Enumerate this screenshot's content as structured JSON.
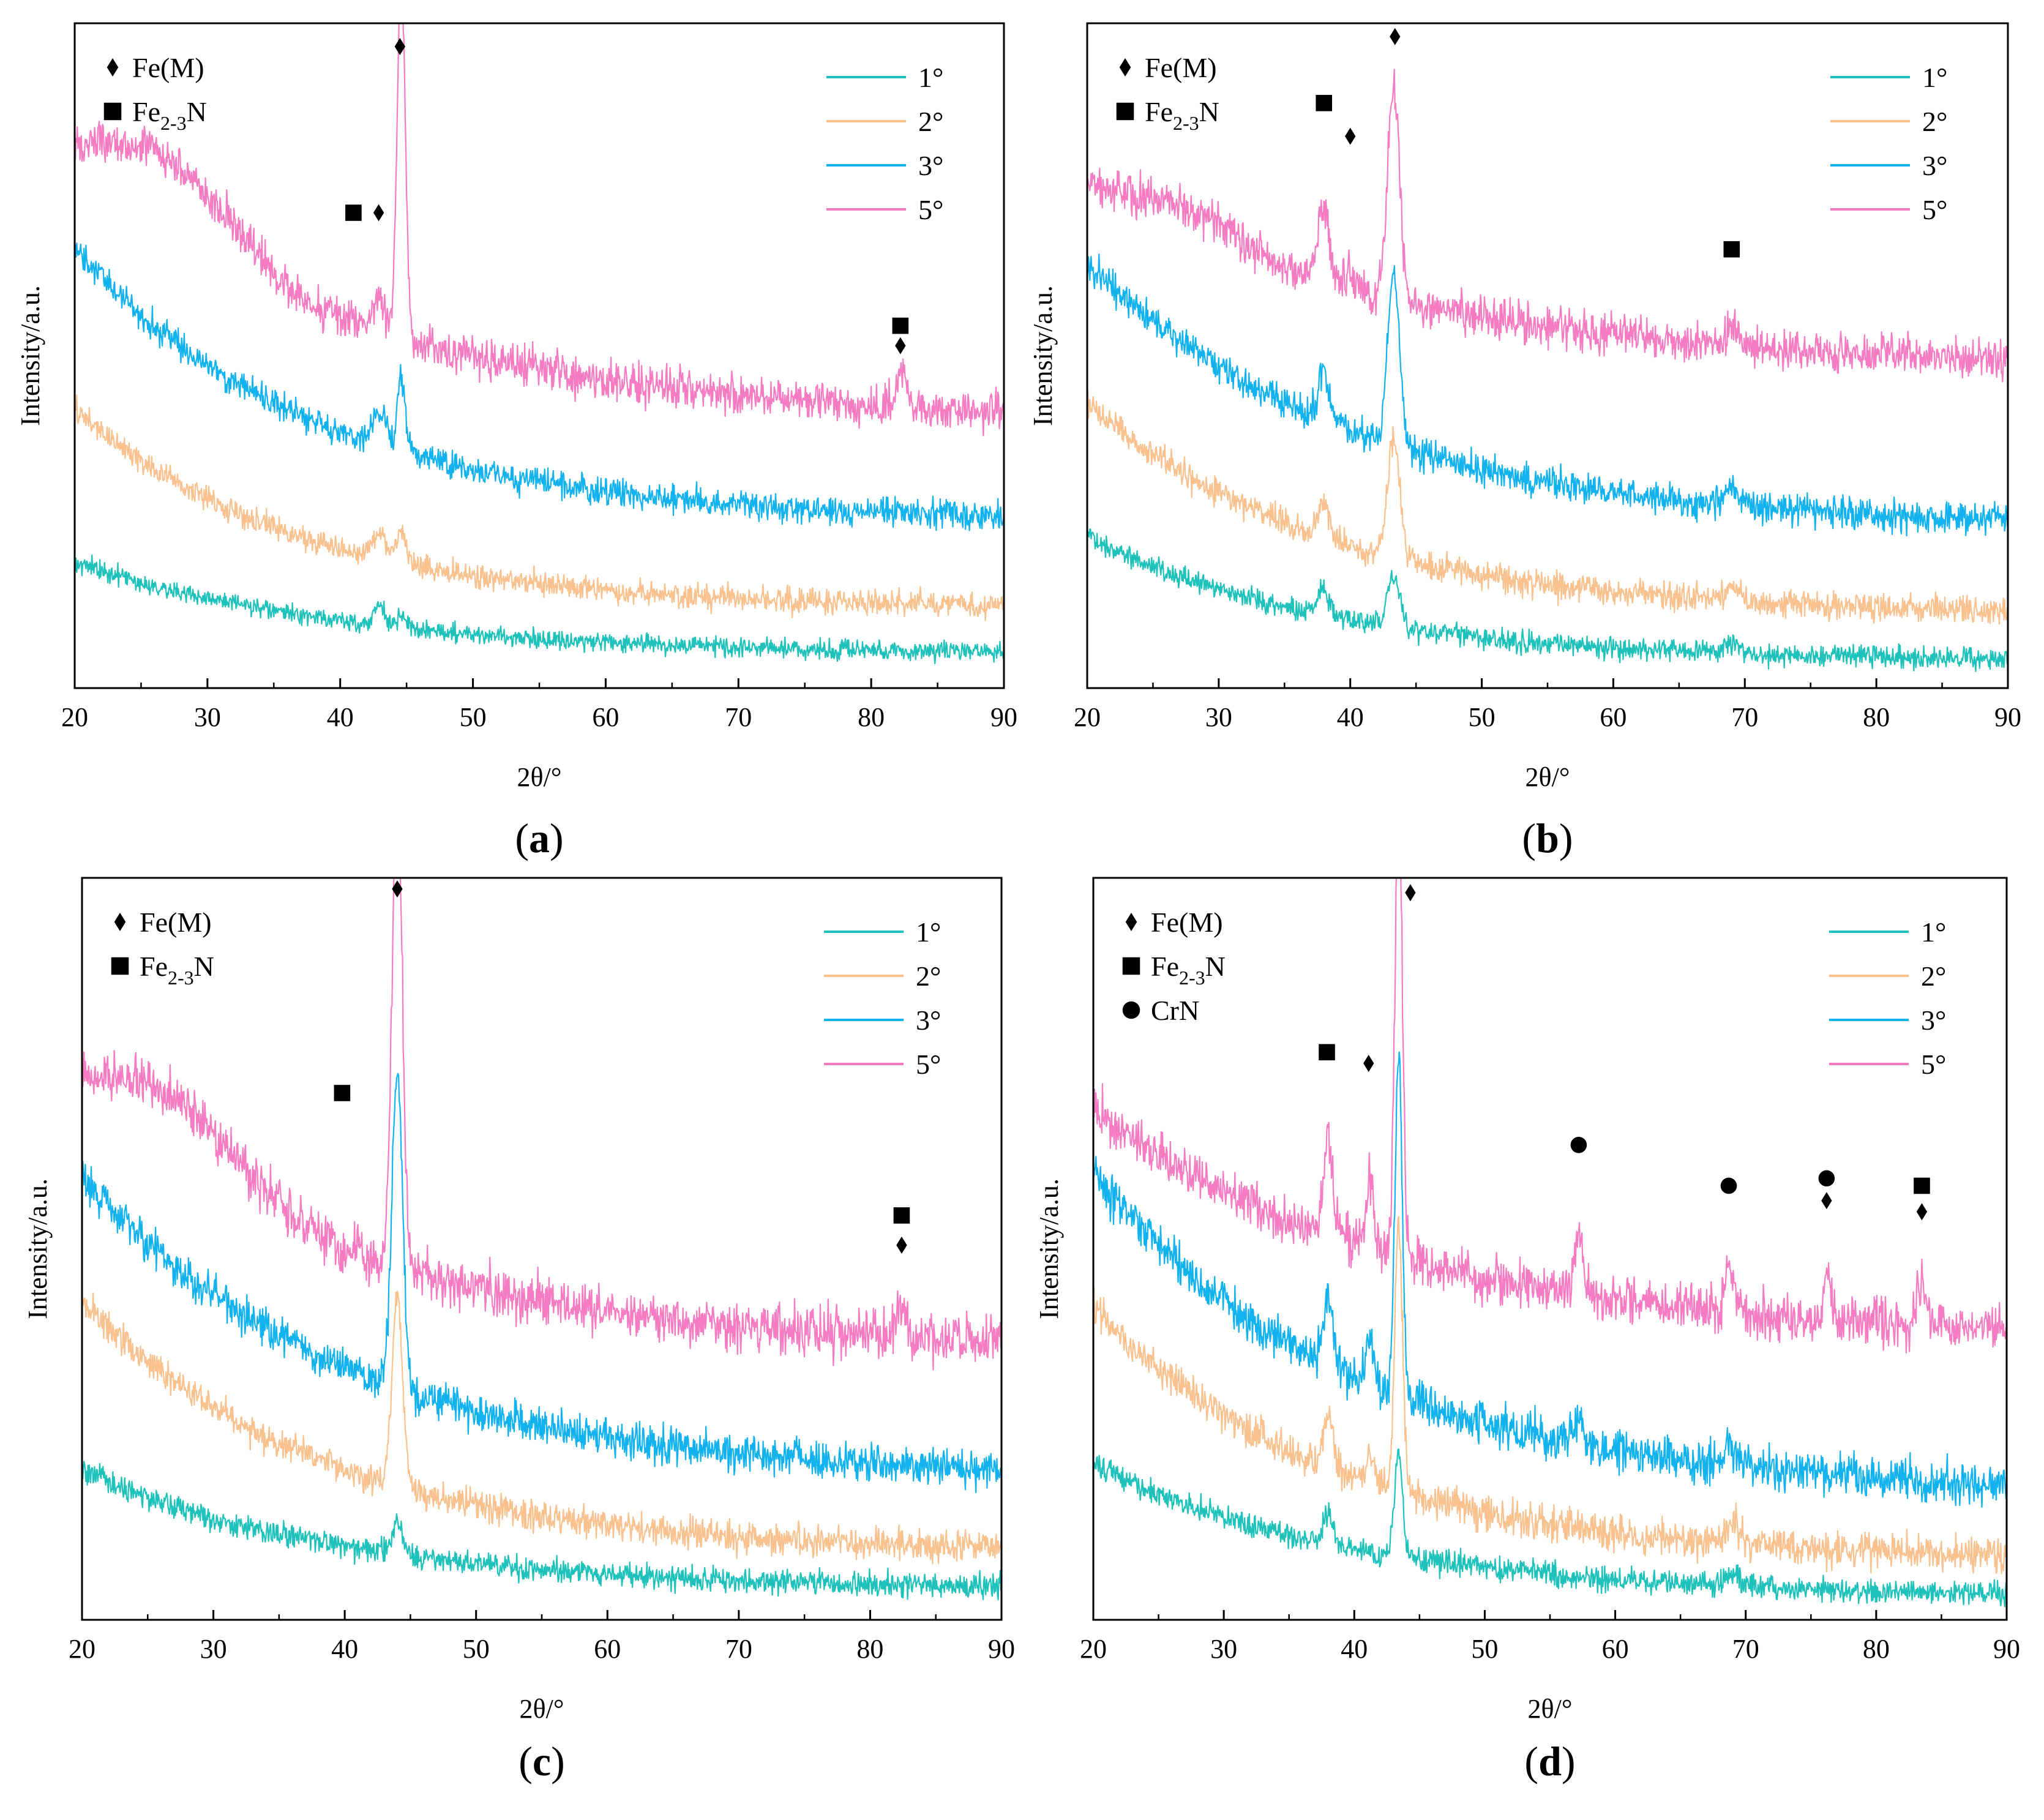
{
  "chart_data": [
    {
      "type": "line",
      "panel_label": "(a)",
      "panel_letter": "a",
      "xlabel": "2θ/°",
      "ylabel": "Intensity/a.u.",
      "xlim": [
        20,
        90
      ],
      "xticks": [
        20,
        30,
        40,
        50,
        60,
        70,
        80,
        90
      ],
      "series": [
        {
          "name": "1°",
          "color": "#1ec2bb",
          "base_start": 0.19,
          "base_end": 0.05,
          "decay": 0.05,
          "noise": 0.012,
          "peaks": [
            {
              "x": 43.0,
              "h": 0.03,
              "w": 0.4
            },
            {
              "x": 44.6,
              "h": 0.015,
              "w": 0.35
            }
          ]
        },
        {
          "name": "2°",
          "color": "#f8c18e",
          "base_start": 0.42,
          "base_end": 0.12,
          "decay": 0.06,
          "noise": 0.016,
          "peaks": [
            {
              "x": 43.0,
              "h": 0.04,
              "w": 0.5
            },
            {
              "x": 44.6,
              "h": 0.045,
              "w": 0.35
            }
          ]
        },
        {
          "name": "3°",
          "color": "#12b2ee",
          "base_start": 0.66,
          "base_end": 0.25,
          "decay": 0.055,
          "noise": 0.018,
          "peaks": [
            {
              "x": 43.0,
              "h": 0.05,
              "w": 0.5
            },
            {
              "x": 44.6,
              "h": 0.11,
              "w": 0.3
            }
          ]
        },
        {
          "name": "5°",
          "color": "#f57bc2",
          "base_start": 0.78,
          "base_end": 0.4,
          "decay": 0.045,
          "noise": 0.026,
          "hump": 0.12,
          "peaks": [
            {
              "x": 43.0,
              "h": 0.05,
              "w": 0.5
            },
            {
              "x": 44.6,
              "h": 0.55,
              "w": 0.3
            },
            {
              "x": 82.3,
              "h": 0.05,
              "w": 0.4
            }
          ]
        }
      ],
      "markers": [
        {
          "type": "square",
          "x": 41.0,
          "y": 0.715
        },
        {
          "type": "diamond",
          "x": 42.9,
          "y": 0.715
        },
        {
          "type": "diamond",
          "x": 44.5,
          "y": 0.965
        },
        {
          "type": "square",
          "x": 82.2,
          "y": 0.545
        },
        {
          "type": "diamond",
          "x": 82.2,
          "y": 0.515
        }
      ],
      "marker_legend": [
        {
          "type": "diamond",
          "label": "Fe(M)"
        },
        {
          "type": "square",
          "label": "Fe",
          "sub": "2-3",
          "suffix": "N"
        }
      ]
    },
    {
      "type": "line",
      "panel_label": "(b)",
      "panel_letter": "b",
      "xlabel": "2θ/°",
      "ylabel": "Intensity/a.u.",
      "xlim": [
        20,
        90
      ],
      "xticks": [
        20,
        30,
        40,
        50,
        60,
        70,
        80,
        90
      ],
      "series": [
        {
          "name": "1°",
          "color": "#1ec2bb",
          "base_start": 0.23,
          "base_end": 0.04,
          "decay": 0.055,
          "noise": 0.014,
          "peaks": [
            {
              "x": 38.0,
              "h": 0.04,
              "w": 0.4
            },
            {
              "x": 43.3,
              "h": 0.08,
              "w": 0.45
            },
            {
              "x": 69.0,
              "h": 0.015,
              "w": 0.5
            }
          ]
        },
        {
          "name": "2°",
          "color": "#f8c18e",
          "base_start": 0.43,
          "base_end": 0.11,
          "decay": 0.055,
          "noise": 0.018,
          "peaks": [
            {
              "x": 38.0,
              "h": 0.05,
              "w": 0.4
            },
            {
              "x": 43.3,
              "h": 0.18,
              "w": 0.45
            },
            {
              "x": 69.0,
              "h": 0.02,
              "w": 0.5
            }
          ]
        },
        {
          "name": "3°",
          "color": "#12b2ee",
          "base_start": 0.64,
          "base_end": 0.24,
          "decay": 0.05,
          "noise": 0.02,
          "peaks": [
            {
              "x": 38.0,
              "h": 0.07,
              "w": 0.45
            },
            {
              "x": 43.3,
              "h": 0.26,
              "w": 0.45
            },
            {
              "x": 69.0,
              "h": 0.025,
              "w": 0.5
            }
          ]
        },
        {
          "name": "5°",
          "color": "#f57bc2",
          "base_start": 0.74,
          "base_end": 0.48,
          "decay": 0.04,
          "noise": 0.026,
          "hump": 0.05,
          "peaks": [
            {
              "x": 38.0,
              "h": 0.11,
              "w": 0.45
            },
            {
              "x": 40.0,
              "h": 0.03,
              "w": 0.4
            },
            {
              "x": 43.3,
              "h": 0.33,
              "w": 0.45
            },
            {
              "x": 69.0,
              "h": 0.04,
              "w": 0.4
            }
          ]
        }
      ],
      "markers": [
        {
          "type": "square",
          "x": 38.0,
          "y": 0.88
        },
        {
          "type": "diamond",
          "x": 40.0,
          "y": 0.83
        },
        {
          "type": "diamond",
          "x": 43.4,
          "y": 0.98
        },
        {
          "type": "square",
          "x": 69.0,
          "y": 0.66
        }
      ],
      "marker_legend": [
        {
          "type": "diamond",
          "label": "Fe(M)"
        },
        {
          "type": "square",
          "label": "Fe",
          "sub": "2-3",
          "suffix": "N"
        }
      ]
    },
    {
      "type": "line",
      "panel_label": "(c)",
      "panel_letter": "c",
      "xlabel": "2θ/°",
      "ylabel": "Intensity/a.u.",
      "xlim": [
        20,
        90
      ],
      "xticks": [
        20,
        30,
        40,
        50,
        60,
        70,
        80,
        90
      ],
      "series": [
        {
          "name": "1°",
          "color": "#1ec2bb",
          "base_start": 0.2,
          "base_end": 0.04,
          "decay": 0.05,
          "noise": 0.014,
          "peaks": [
            {
              "x": 44.0,
              "h": 0.04,
              "w": 0.4
            }
          ]
        },
        {
          "name": "2°",
          "color": "#f8c18e",
          "base_start": 0.43,
          "base_end": 0.09,
          "decay": 0.055,
          "noise": 0.018,
          "peaks": [
            {
              "x": 44.0,
              "h": 0.25,
              "w": 0.4
            }
          ]
        },
        {
          "name": "3°",
          "color": "#12b2ee",
          "base_start": 0.6,
          "base_end": 0.19,
          "decay": 0.05,
          "noise": 0.022,
          "peaks": [
            {
              "x": 44.0,
              "h": 0.43,
              "w": 0.4
            }
          ]
        },
        {
          "name": "5°",
          "color": "#f57bc2",
          "base_start": 0.7,
          "base_end": 0.36,
          "decay": 0.045,
          "noise": 0.028,
          "hump": 0.1,
          "peaks": [
            {
              "x": 44.0,
              "h": 0.62,
              "w": 0.4
            },
            {
              "x": 82.3,
              "h": 0.04,
              "w": 0.4
            }
          ]
        }
      ],
      "markers": [
        {
          "type": "square",
          "x": 39.8,
          "y": 0.71
        },
        {
          "type": "diamond",
          "x": 44.0,
          "y": 0.985
        },
        {
          "type": "square",
          "x": 82.4,
          "y": 0.545
        },
        {
          "type": "diamond",
          "x": 82.4,
          "y": 0.505
        }
      ],
      "marker_legend": [
        {
          "type": "diamond",
          "label": "Fe(M)"
        },
        {
          "type": "square",
          "label": "Fe",
          "sub": "2-3",
          "suffix": "N"
        }
      ]
    },
    {
      "type": "line",
      "panel_label": "(d)",
      "panel_letter": "d",
      "xlabel": "2θ/°",
      "ylabel": "Intensity/a.u.",
      "xlim": [
        20,
        90
      ],
      "xticks": [
        20,
        30,
        40,
        50,
        60,
        70,
        80,
        90
      ],
      "series": [
        {
          "name": "1°",
          "color": "#1ec2bb",
          "base_start": 0.21,
          "base_end": 0.03,
          "decay": 0.05,
          "noise": 0.014,
          "peaks": [
            {
              "x": 38.0,
              "h": 0.04,
              "w": 0.35
            },
            {
              "x": 43.4,
              "h": 0.14,
              "w": 0.3
            },
            {
              "x": 69.0,
              "h": 0.02,
              "w": 0.5
            }
          ]
        },
        {
          "name": "2°",
          "color": "#f8c18e",
          "base_start": 0.42,
          "base_end": 0.08,
          "decay": 0.055,
          "noise": 0.02,
          "peaks": [
            {
              "x": 38.0,
              "h": 0.07,
              "w": 0.35
            },
            {
              "x": 41.2,
              "h": 0.04,
              "w": 0.3
            },
            {
              "x": 43.4,
              "h": 0.36,
              "w": 0.3
            },
            {
              "x": 69.0,
              "h": 0.03,
              "w": 0.5
            }
          ]
        },
        {
          "name": "3°",
          "color": "#12b2ee",
          "base_start": 0.6,
          "base_end": 0.17,
          "decay": 0.05,
          "noise": 0.024,
          "peaks": [
            {
              "x": 38.0,
              "h": 0.09,
              "w": 0.35
            },
            {
              "x": 41.2,
              "h": 0.06,
              "w": 0.3
            },
            {
              "x": 43.4,
              "h": 0.46,
              "w": 0.28
            },
            {
              "x": 57.2,
              "h": 0.03,
              "w": 0.4
            },
            {
              "x": 68.8,
              "h": 0.03,
              "w": 0.4
            }
          ]
        },
        {
          "name": "5°",
          "color": "#f57bc2",
          "base_start": 0.69,
          "base_end": 0.38,
          "decay": 0.045,
          "noise": 0.028,
          "peaks": [
            {
              "x": 38.0,
              "h": 0.13,
              "w": 0.35
            },
            {
              "x": 41.2,
              "h": 0.1,
              "w": 0.3
            },
            {
              "x": 43.4,
              "h": 0.62,
              "w": 0.28
            },
            {
              "x": 57.2,
              "h": 0.08,
              "w": 0.35
            },
            {
              "x": 68.8,
              "h": 0.07,
              "w": 0.35
            },
            {
              "x": 76.3,
              "h": 0.06,
              "w": 0.3
            },
            {
              "x": 83.5,
              "h": 0.05,
              "w": 0.35
            }
          ]
        }
      ],
      "markers": [
        {
          "type": "square",
          "x": 37.9,
          "y": 0.765
        },
        {
          "type": "diamond",
          "x": 41.1,
          "y": 0.75
        },
        {
          "type": "diamond",
          "x": 44.3,
          "y": 0.98
        },
        {
          "type": "circle",
          "x": 57.2,
          "y": 0.64
        },
        {
          "type": "circle",
          "x": 68.7,
          "y": 0.585
        },
        {
          "type": "circle",
          "x": 76.2,
          "y": 0.595
        },
        {
          "type": "diamond",
          "x": 76.2,
          "y": 0.565
        },
        {
          "type": "square",
          "x": 83.5,
          "y": 0.585
        },
        {
          "type": "diamond",
          "x": 83.5,
          "y": 0.55
        }
      ],
      "marker_legend": [
        {
          "type": "diamond",
          "label": "Fe(M)"
        },
        {
          "type": "square",
          "label": "Fe",
          "sub": "2-3",
          "suffix": "N"
        },
        {
          "type": "circle",
          "label": "CrN"
        }
      ]
    }
  ]
}
